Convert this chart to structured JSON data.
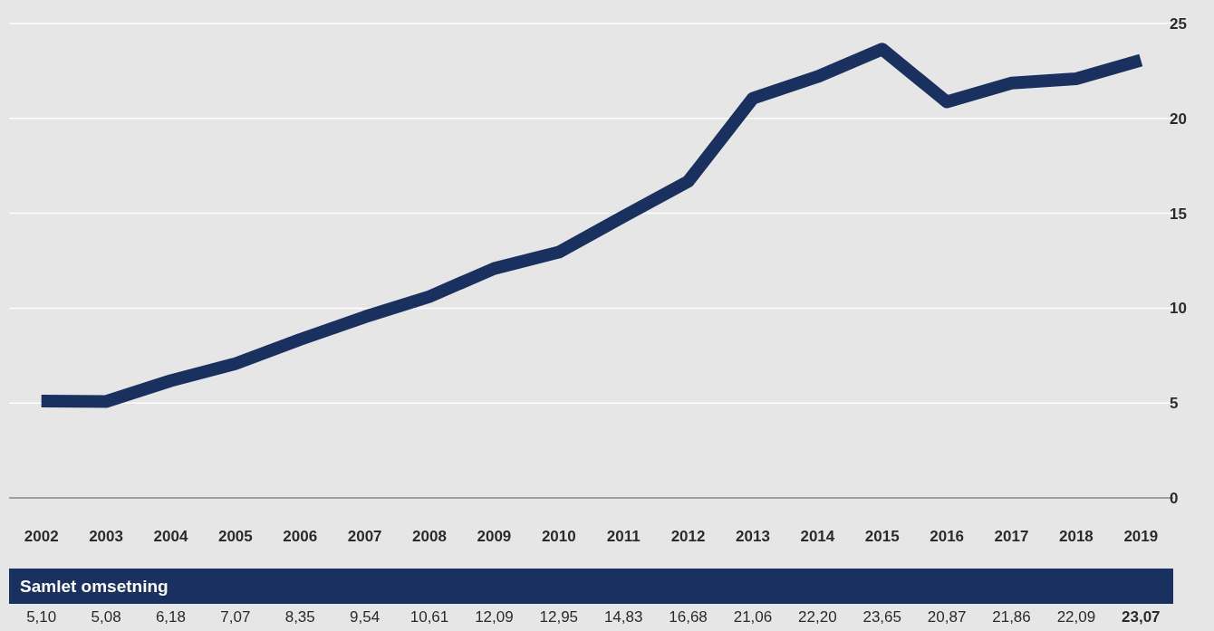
{
  "chart_data": {
    "type": "line",
    "categories": [
      "2002",
      "2003",
      "2004",
      "2005",
      "2006",
      "2007",
      "2008",
      "2009",
      "2010",
      "2011",
      "2012",
      "2013",
      "2014",
      "2015",
      "2016",
      "2017",
      "2018",
      "2019"
    ],
    "series": [
      {
        "color": "#1a3160",
        "values": [
          5.1,
          5.08,
          6.18,
          7.07,
          8.35,
          9.54,
          10.61,
          12.09,
          12.95,
          14.83,
          16.68,
          21.06,
          22.2,
          23.65,
          20.87,
          21.86,
          22.09,
          23.07
        ]
      }
    ],
    "value_labels": [
      "5,10",
      "5,08",
      "6,18",
      "7,07",
      "8,35",
      "9,54",
      "10,61",
      "12,09",
      "12,95",
      "14,83",
      "16,68",
      "21,06",
      "22,20",
      "23,65",
      "20,87",
      "21,86",
      "22,09",
      "23,07"
    ],
    "annotations": [
      "Samlet omsetning"
    ],
    "ylim": [
      0,
      25
    ],
    "yticks": [
      0,
      5,
      10,
      15,
      20,
      25
    ],
    "grid": "y",
    "marker": "none",
    "line_style": "solid"
  }
}
